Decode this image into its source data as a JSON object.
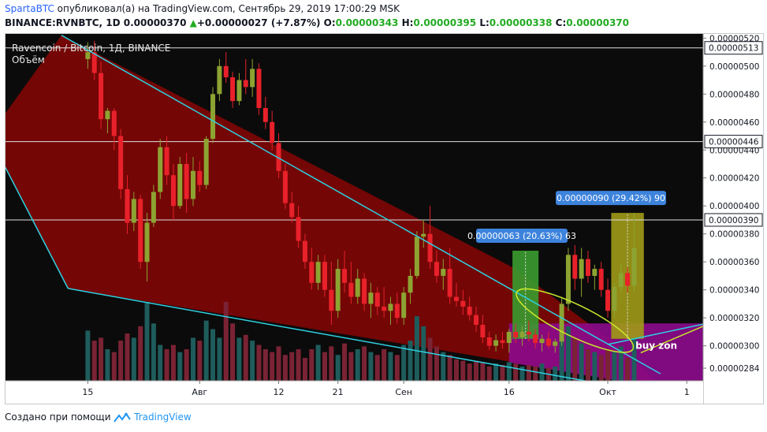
{
  "header": {
    "author": "SpartaBTC",
    "text": "опубликовал(а) на TradingView.com, Сентябрь 29, 2019 17:00:29 MSK"
  },
  "ohlc": {
    "symbol": "BINANCE:RVNBTC, 1D",
    "price": "0.00000370",
    "change_arrow": "▲",
    "change": "+0.00000027 (+7.87%)",
    "o_label": "O:",
    "o": "0.00000343",
    "h_label": "H:",
    "h": "0.00000395",
    "l_label": "L:",
    "l": "0.00000338",
    "c_label": "C:",
    "c": "0.00000370"
  },
  "legend": {
    "line1": "Ravencoin / Bitcoin, 1Д, BINANCE",
    "line2": "Объём"
  },
  "footer": {
    "text": "Создано при помощи",
    "brand": "TradingView",
    "brand_icon": "tradingview-logo-icon"
  },
  "colors": {
    "background": "#0b0b0b",
    "candle_up": "#8da332",
    "candle_down": "#e8212a",
    "wedge_fill": "#7a0606",
    "trendline": "#2ed0e0",
    "buy_zone": "#8d0a8c",
    "measure_green": "#3a9c2f",
    "measure_yellow": "#a09a16",
    "label_blue": "#3d83dc",
    "ellipse": "#c8e62c",
    "volume_up": "#1f5c5c",
    "volume_down": "#7a2334"
  },
  "chart_data": {
    "type": "candlestick",
    "ylim": [
      2.75e-06,
      5.23e-06
    ],
    "y_ticks": [
      "0.00000520",
      "0.00000500",
      "0.00000480",
      "0.00000460",
      "0.00000440",
      "0.00000420",
      "0.00000400",
      "0.00000380",
      "0.00000360",
      "0.00000340",
      "0.00000320",
      "0.00000300",
      "0.00000284"
    ],
    "y_tick_values": [
      5.2,
      5.0,
      4.8,
      4.6,
      4.4,
      4.2,
      4.0,
      3.8,
      3.6,
      3.4,
      3.2,
      3.0,
      2.84
    ],
    "price_levels": [
      {
        "label": "0.00000513",
        "value": 5.13
      },
      {
        "label": "0.00000446",
        "value": 4.46
      },
      {
        "label": "0.00000390",
        "value": 3.9
      }
    ],
    "x_ticks": [
      "15",
      "Авг",
      "12",
      "21",
      "Сен",
      "16",
      "Окт",
      "1"
    ],
    "x_tick_days": [
      13,
      30,
      42,
      51,
      61,
      77,
      92,
      104
    ],
    "candles_start_day": 13,
    "candles": [
      [
        5.05,
        5.17,
        4.98,
        5.1
      ],
      [
        5.1,
        5.18,
        4.9,
        4.95
      ],
      [
        4.95,
        5.03,
        4.55,
        4.62
      ],
      [
        4.62,
        4.7,
        4.52,
        4.68
      ],
      [
        4.68,
        4.7,
        4.4,
        4.5
      ],
      [
        4.5,
        4.55,
        4.05,
        4.12
      ],
      [
        4.12,
        4.22,
        3.8,
        3.88
      ],
      [
        3.88,
        4.1,
        3.82,
        4.05
      ],
      [
        4.05,
        4.08,
        3.55,
        3.6
      ],
      [
        3.6,
        3.95,
        3.46,
        3.88
      ],
      [
        3.88,
        4.15,
        3.85,
        4.1
      ],
      [
        4.1,
        4.48,
        4.05,
        4.42
      ],
      [
        4.42,
        4.5,
        4.15,
        4.22
      ],
      [
        4.22,
        4.3,
        3.9,
        4.0
      ],
      [
        4.0,
        4.35,
        3.98,
        4.3
      ],
      [
        4.3,
        4.38,
        3.95,
        4.05
      ],
      [
        4.05,
        4.35,
        4.0,
        4.25
      ],
      [
        4.25,
        4.32,
        4.1,
        4.15
      ],
      [
        4.15,
        4.5,
        4.12,
        4.48
      ],
      [
        4.48,
        4.85,
        4.45,
        4.8
      ],
      [
        4.8,
        5.05,
        4.75,
        5.0
      ],
      [
        5.0,
        5.1,
        4.88,
        4.92
      ],
      [
        4.92,
        4.96,
        4.7,
        4.75
      ],
      [
        4.75,
        4.95,
        4.72,
        4.9
      ],
      [
        4.9,
        5.05,
        4.8,
        4.85
      ],
      [
        4.85,
        5.05,
        4.78,
        4.98
      ],
      [
        4.98,
        5.02,
        4.65,
        4.7
      ],
      [
        4.7,
        4.78,
        4.55,
        4.6
      ],
      [
        4.6,
        4.68,
        4.4,
        4.45
      ],
      [
        4.45,
        4.52,
        4.2,
        4.25
      ],
      [
        4.25,
        4.3,
        3.98,
        4.02
      ],
      [
        4.02,
        4.1,
        3.88,
        3.92
      ],
      [
        3.92,
        4.0,
        3.7,
        3.75
      ],
      [
        3.75,
        3.8,
        3.55,
        3.6
      ],
      [
        3.6,
        3.7,
        3.4,
        3.45
      ],
      [
        3.45,
        3.65,
        3.4,
        3.6
      ],
      [
        3.6,
        3.65,
        3.35,
        3.4
      ],
      [
        3.4,
        3.6,
        3.15,
        3.25
      ],
      [
        3.25,
        3.62,
        3.2,
        3.55
      ],
      [
        3.55,
        3.68,
        3.38,
        3.45
      ],
      [
        3.45,
        3.6,
        3.3,
        3.35
      ],
      [
        3.35,
        3.55,
        3.3,
        3.48
      ],
      [
        3.48,
        3.52,
        3.25,
        3.3
      ],
      [
        3.3,
        3.45,
        3.2,
        3.38
      ],
      [
        3.38,
        3.42,
        3.22,
        3.28
      ],
      [
        3.28,
        3.42,
        3.2,
        3.25
      ],
      [
        3.25,
        3.35,
        3.15,
        3.3
      ],
      [
        3.3,
        3.38,
        3.16,
        3.2
      ],
      [
        3.2,
        3.42,
        3.15,
        3.38
      ],
      [
        3.38,
        3.55,
        3.3,
        3.5
      ],
      [
        3.5,
        3.82,
        3.48,
        3.78
      ],
      [
        3.78,
        3.9,
        3.7,
        3.8
      ],
      [
        3.8,
        4.0,
        3.55,
        3.6
      ],
      [
        3.6,
        3.68,
        3.45,
        3.5
      ],
      [
        3.5,
        3.62,
        3.4,
        3.55
      ],
      [
        3.55,
        3.7,
        3.3,
        3.35
      ],
      [
        3.35,
        3.45,
        3.28,
        3.32
      ],
      [
        3.32,
        3.4,
        3.22,
        3.28
      ],
      [
        3.28,
        3.35,
        3.18,
        3.22
      ],
      [
        3.22,
        3.28,
        3.1,
        3.15
      ],
      [
        3.15,
        3.22,
        3.02,
        3.06
      ],
      [
        3.06,
        3.1,
        2.97,
        3.0
      ],
      [
        3.0,
        3.08,
        2.96,
        3.04
      ],
      [
        3.04,
        3.1,
        2.98,
        3.02
      ],
      [
        3.02,
        3.12,
        2.95,
        3.1
      ],
      [
        3.1,
        3.16,
        3.02,
        3.06
      ],
      [
        3.06,
        3.14,
        3.0,
        3.1
      ],
      [
        3.1,
        3.18,
        3.03,
        3.08
      ],
      [
        3.08,
        3.12,
        2.98,
        3.02
      ],
      [
        3.02,
        3.08,
        2.96,
        3.05
      ],
      [
        3.05,
        3.1,
        2.98,
        3.0
      ],
      [
        3.0,
        3.05,
        2.95,
        3.03
      ],
      [
        3.03,
        3.35,
        3.0,
        3.3
      ],
      [
        3.3,
        3.7,
        3.25,
        3.65
      ],
      [
        3.65,
        3.72,
        3.4,
        3.48
      ],
      [
        3.48,
        3.7,
        3.35,
        3.62
      ],
      [
        3.62,
        3.68,
        3.45,
        3.5
      ],
      [
        3.5,
        3.58,
        3.4,
        3.55
      ],
      [
        3.55,
        3.6,
        3.35,
        3.4
      ],
      [
        3.4,
        3.48,
        3.2,
        3.25
      ],
      [
        3.25,
        3.45,
        3.2,
        3.42
      ],
      [
        3.42,
        3.58,
        3.38,
        3.52
      ],
      [
        3.52,
        3.56,
        3.38,
        3.43
      ],
      [
        3.43,
        3.95,
        3.38,
        3.7
      ]
    ],
    "volumes": [
      0.35,
      0.28,
      0.3,
      0.22,
      0.2,
      0.28,
      0.33,
      0.3,
      0.38,
      0.55,
      0.4,
      0.25,
      0.22,
      0.25,
      0.2,
      0.22,
      0.3,
      0.28,
      0.42,
      0.36,
      0.3,
      0.55,
      0.4,
      0.3,
      0.32,
      0.28,
      0.25,
      0.22,
      0.2,
      0.24,
      0.18,
      0.2,
      0.22,
      0.16,
      0.22,
      0.25,
      0.2,
      0.24,
      0.18,
      0.26,
      0.2,
      0.22,
      0.24,
      0.2,
      0.18,
      0.22,
      0.2,
      0.18,
      0.25,
      0.28,
      0.45,
      0.38,
      0.3,
      0.24,
      0.2,
      0.18,
      0.15,
      0.14,
      0.12,
      0.14,
      0.13,
      0.1,
      0.12,
      0.11,
      0.13,
      0.12,
      0.1,
      0.11,
      0.1,
      0.12,
      0.09,
      0.1,
      0.28,
      0.38,
      0.3,
      0.26,
      0.22,
      0.2,
      0.18,
      0.22,
      0.2,
      0.24,
      0.16,
      0.3
    ],
    "measurements": [
      {
        "label": "0.00000063 (20.63%) 63",
        "color": "green",
        "start_day": 78,
        "end_day": 81,
        "from": 3.05,
        "to": 3.68
      },
      {
        "label": "0.00000090 (29.42%) 90",
        "color": "yellow",
        "start_day": 93,
        "end_day": 97,
        "from": 3.05,
        "to": 3.95
      }
    ],
    "annotations": [
      {
        "text": "buy zon",
        "day": 101,
        "value": 3.0
      }
    ]
  }
}
